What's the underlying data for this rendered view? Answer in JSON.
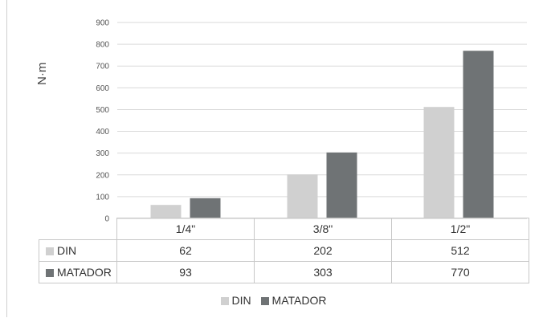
{
  "chart_data": {
    "type": "bar",
    "ylabel": "N·m",
    "ylim": [
      0,
      900
    ],
    "yticks": [
      "0",
      "100",
      "200",
      "300",
      "400",
      "500",
      "600",
      "700",
      "800",
      "900"
    ],
    "categories": [
      "1/4\"",
      "3/8\"",
      "1/2\""
    ],
    "series": [
      {
        "name": "DIN",
        "values": [
          62,
          202,
          512
        ],
        "color": "#d0d0d0"
      },
      {
        "name": "MATADOR",
        "values": [
          93,
          303,
          770
        ],
        "color": "#6f7375"
      }
    ],
    "grid": true,
    "legend_position": "bottom",
    "data_table": true
  },
  "table": {
    "rows": [
      {
        "label": "DIN",
        "cells": [
          "62",
          "202",
          "512"
        ]
      },
      {
        "label": "MATADOR",
        "cells": [
          "93",
          "303",
          "770"
        ]
      }
    ]
  }
}
